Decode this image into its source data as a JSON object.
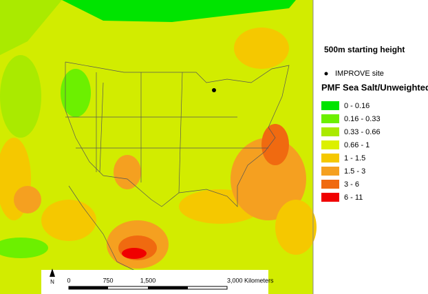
{
  "map": {
    "starting_height": "500m starting height",
    "site_label": "IMPROVE site",
    "legend": {
      "title": "PMF Sea Salt/Unweighted",
      "items": [
        {
          "label": "0 - 0.16",
          "color": "#00e400"
        },
        {
          "label": "0.16 - 0.33",
          "color": "#6cf000"
        },
        {
          "label": "0.33 - 0.66",
          "color": "#aaea00"
        },
        {
          "label": "0.66 - 1",
          "color": "#dcf000"
        },
        {
          "label": "1 - 1.5",
          "color": "#f5c800"
        },
        {
          "label": "1.5 - 3",
          "color": "#f5a020"
        },
        {
          "label": "3 - 6",
          "color": "#f06a10"
        },
        {
          "label": "6 - 11",
          "color": "#f00000"
        }
      ]
    },
    "north": "N",
    "scale_bar": [
      "0",
      "750",
      "1,500",
      "3,000 Kilometers"
    ]
  }
}
